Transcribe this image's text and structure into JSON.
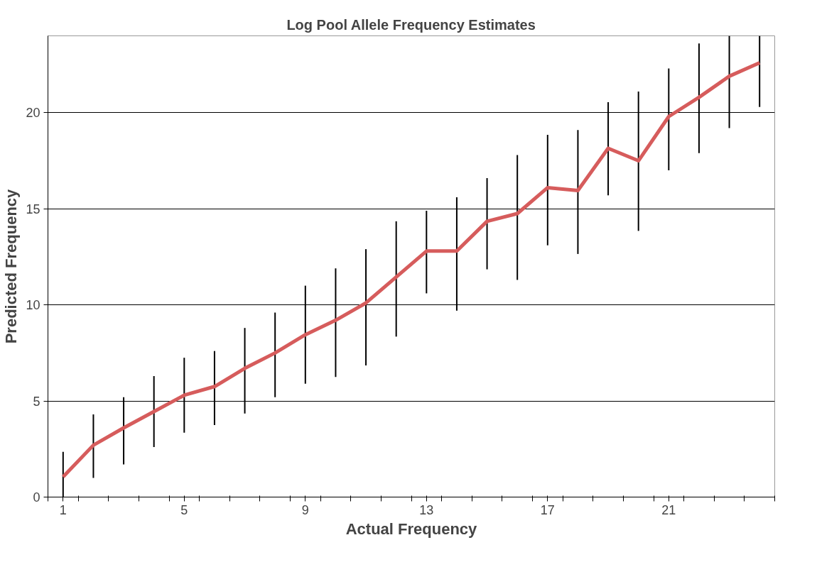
{
  "chart_data": {
    "type": "line",
    "title": "Log Pool Allele Frequency Estimates",
    "xlabel": "Actual Frequency",
    "ylabel": "Predicted Frequency",
    "x": [
      1,
      2,
      3,
      4,
      5,
      6,
      7,
      8,
      9,
      10,
      11,
      12,
      13,
      14,
      15,
      16,
      17,
      18,
      19,
      20,
      21,
      22,
      23,
      24
    ],
    "series": [
      {
        "color": "#d65c5c",
        "values": [
          1.05,
          2.7,
          3.6,
          4.45,
          5.3,
          5.75,
          6.7,
          7.5,
          8.45,
          9.2,
          10.1,
          11.45,
          12.8,
          12.8,
          14.35,
          14.75,
          16.1,
          15.95,
          18.15,
          17.5,
          19.8,
          20.8,
          21.9,
          22.6
        ],
        "errors": [
          [
            0,
            2.35
          ],
          [
            1.0,
            4.3
          ],
          [
            1.7,
            5.2
          ],
          [
            2.6,
            6.3
          ],
          [
            3.35,
            7.25
          ],
          [
            3.75,
            7.6
          ],
          [
            4.35,
            8.8
          ],
          [
            5.2,
            9.6
          ],
          [
            5.9,
            11
          ],
          [
            6.25,
            11.9
          ],
          [
            6.85,
            12.9
          ],
          [
            8.35,
            14.35
          ],
          [
            10.6,
            14.9
          ],
          [
            9.7,
            15.6
          ],
          [
            11.85,
            16.6
          ],
          [
            11.3,
            17.8
          ],
          [
            13.1,
            18.85
          ],
          [
            12.65,
            19.1
          ],
          [
            15.7,
            20.55
          ],
          [
            13.85,
            21.1
          ],
          [
            17,
            22.3
          ],
          [
            17.9,
            23.6
          ],
          [
            19.2,
            24
          ],
          [
            20.3,
            24
          ]
        ]
      }
    ],
    "xlim": [
      0.5,
      24.5
    ],
    "xticks": [
      1,
      5,
      9,
      13,
      17,
      21,
      {
        "value": 0.5,
        "label": null
      },
      {
        "value": 1.5,
        "label": null
      },
      {
        "value": 2.5,
        "label": null
      },
      {
        "value": 3.5,
        "label": null
      },
      {
        "value": 4.5,
        "label": null
      },
      {
        "value": 5.5,
        "label": null
      },
      {
        "value": 6.5,
        "label": null
      },
      {
        "value": 7.5,
        "label": null
      },
      {
        "value": 8.5,
        "label": null
      },
      {
        "value": 9.5,
        "label": null
      },
      {
        "value": 10.5,
        "label": null
      },
      {
        "value": 11.5,
        "label": null
      },
      {
        "value": 12.5,
        "label": null
      },
      {
        "value": 13.5,
        "label": null
      },
      {
        "value": 14.5,
        "label": null
      },
      {
        "value": 15.5,
        "label": null
      },
      {
        "value": 16.5,
        "label": null
      },
      {
        "value": 17.5,
        "label": null
      },
      {
        "value": 18.5,
        "label": null
      },
      {
        "value": 19.5,
        "label": null
      },
      {
        "value": 20.5,
        "label": null
      },
      {
        "value": 21.5,
        "label": null
      },
      {
        "value": 22.5,
        "label": null
      },
      {
        "value": 23.5,
        "label": null
      },
      {
        "value": 24.5,
        "label": null
      }
    ],
    "ylim": [
      0,
      24
    ],
    "yticks": [
      0,
      5,
      10,
      15,
      20
    ],
    "grid": "y",
    "marker": "none",
    "line_style": "solid"
  }
}
